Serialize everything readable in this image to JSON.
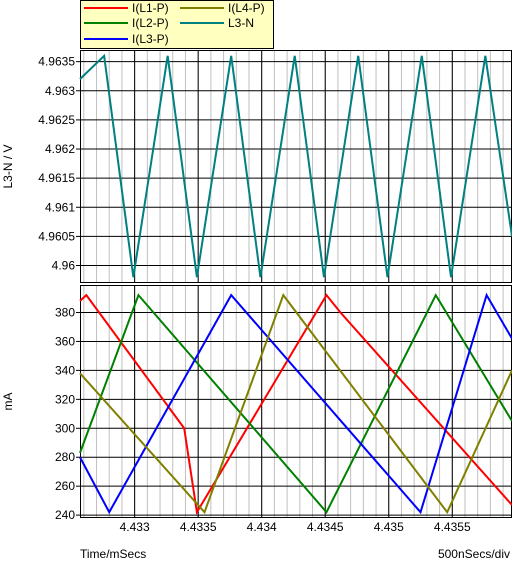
{
  "chart_data": [
    {
      "type": "line",
      "ylabel": "L3-N / V",
      "ylim": [
        4.9597,
        4.9637
      ],
      "yticks": [
        "4.96",
        "4.9605",
        "4.961",
        "4.9615",
        "4.962",
        "4.9625",
        "4.963",
        "4.9635"
      ],
      "xlim": [
        4.43257,
        4.43597
      ],
      "series": [
        {
          "name": "L3-N",
          "color": "#008080",
          "x": [
            4.43257,
            4.43276,
            4.43299,
            4.43326,
            4.43349,
            4.43376,
            4.43399,
            4.43426,
            4.43449,
            4.43476,
            4.43499,
            4.43526,
            4.43549,
            4.43576,
            4.43597
          ],
          "y": [
            4.9632,
            4.9636,
            4.9598,
            4.9636,
            4.9598,
            4.9636,
            4.9598,
            4.9636,
            4.9598,
            4.9636,
            4.9598,
            4.9636,
            4.9598,
            4.9636,
            4.9605
          ]
        }
      ]
    },
    {
      "type": "line",
      "ylabel": "mA",
      "xlabel": "Time/mSecs",
      "ylim": [
        238,
        399
      ],
      "yticks": [
        "240",
        "260",
        "280",
        "300",
        "320",
        "340",
        "360",
        "380"
      ],
      "xlim": [
        4.43257,
        4.43597
      ],
      "xticks": [
        "4.433",
        "4.4335",
        "4.434",
        "4.4345",
        "4.435",
        "4.4355"
      ],
      "series": [
        {
          "name": "I(L1-P)",
          "color": "#ff0000",
          "x": [
            4.43257,
            4.43262,
            4.43339,
            4.43349,
            4.43451,
            4.43462,
            4.43597
          ],
          "y": [
            388,
            392,
            300,
            242,
            392,
            380,
            247
          ]
        },
        {
          "name": "I(L2-P)",
          "color": "#008000",
          "x": [
            4.43257,
            4.43303,
            4.43451,
            4.43537,
            4.43597
          ],
          "y": [
            283,
            392,
            242,
            392,
            305
          ]
        },
        {
          "name": "I(L3-P)",
          "color": "#0000ff",
          "x": [
            4.43257,
            4.4328,
            4.43376,
            4.43525,
            4.43577,
            4.43597
          ],
          "y": [
            280,
            242,
            392,
            242,
            392,
            362
          ]
        },
        {
          "name": "I(L4-P)",
          "color": "#808000",
          "x": [
            4.43257,
            4.43355,
            4.43417,
            4.43546,
            4.43597
          ],
          "y": [
            338,
            242,
            392,
            242,
            340
          ]
        }
      ]
    }
  ],
  "legend": [
    {
      "label": "I(L1-P)",
      "color": "#ff0000"
    },
    {
      "label": "I(L4-P)",
      "color": "#808000"
    },
    {
      "label": "I(L2-P)",
      "color": "#008000"
    },
    {
      "label": "L3-N",
      "color": "#008080"
    },
    {
      "label": "I(L3-P)",
      "color": "#0000ff"
    }
  ],
  "footer": {
    "time_unit": "Time/mSecs",
    "scale": "500nSecs/div"
  },
  "colors": {
    "legend_bg": "#ffffc0",
    "grid_major": "#000000",
    "grid_minor": "#c0c0c0"
  }
}
